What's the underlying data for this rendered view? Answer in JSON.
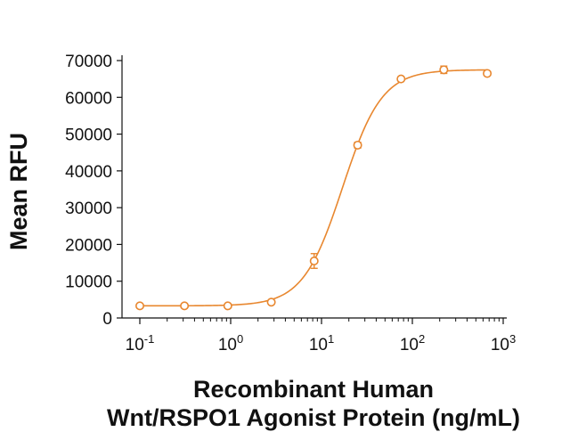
{
  "chart_data": {
    "type": "scatter",
    "title": "",
    "xlabel_line1": "Recombinant Human",
    "xlabel_line2": "Wnt/RSPO1 Agonist Protein (ng/mL)",
    "ylabel": "Mean RFU",
    "x_scale": "log",
    "xlim": [
      0.1,
      1000
    ],
    "ylim": [
      0,
      70000
    ],
    "x_ticks": [
      {
        "value": 0.1,
        "base": "10",
        "exp": "-1"
      },
      {
        "value": 1,
        "base": "10",
        "exp": "0"
      },
      {
        "value": 10,
        "base": "10",
        "exp": "1"
      },
      {
        "value": 100,
        "base": "10",
        "exp": "2"
      },
      {
        "value": 1000,
        "base": "10",
        "exp": "3"
      }
    ],
    "y_ticks": [
      "0",
      "10000",
      "20000",
      "30000",
      "40000",
      "50000",
      "60000",
      "70000"
    ],
    "grid": false,
    "legend": "none",
    "series": [
      {
        "color": "#E8872F",
        "marker": "open-circle",
        "x": [
          0.1,
          0.31,
          0.93,
          2.8,
          8.3,
          25,
          75,
          222,
          667
        ],
        "y": [
          3300,
          3300,
          3300,
          4300,
          15500,
          47000,
          65000,
          67500,
          66500
        ],
        "y_err": [
          0,
          0,
          0,
          400,
          2000,
          800,
          500,
          1000,
          500
        ]
      }
    ],
    "fit": {
      "kind": "four-parameter logistic",
      "bottom": 3300,
      "top": 67500,
      "ec50": 17,
      "hill": 2.0,
      "color": "#E8872F"
    }
  }
}
